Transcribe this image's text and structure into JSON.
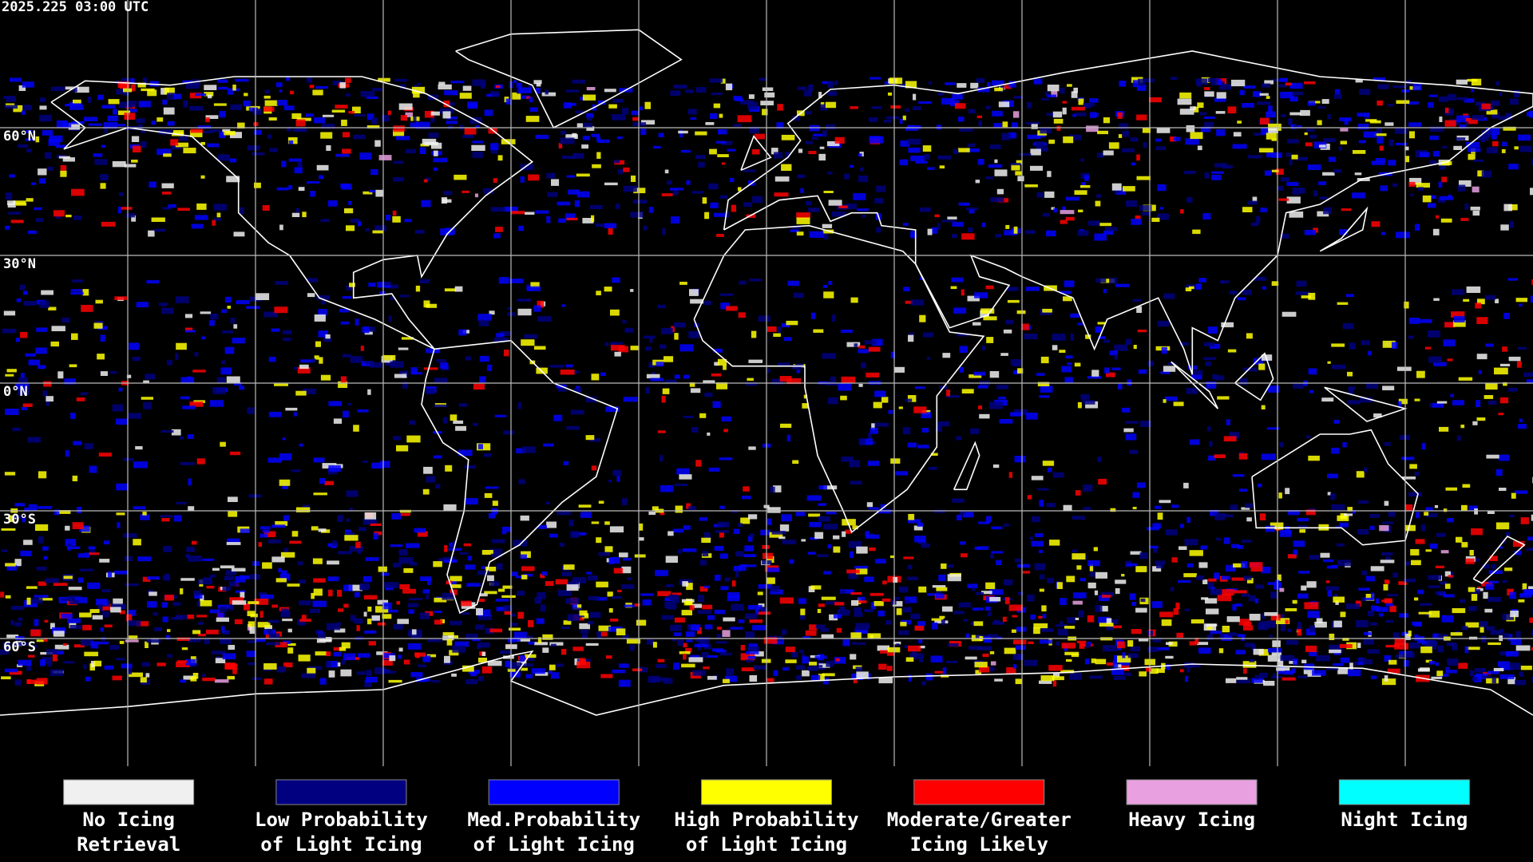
{
  "header": {
    "timestamp": "2025.225 03:00 UTC"
  },
  "map": {
    "latitude_labels": [
      "60°N",
      "30°N",
      "0°N",
      "30°S",
      "60°S"
    ]
  },
  "legend": {
    "items": [
      {
        "label": [
          "No Icing",
          "Retrieval"
        ],
        "color": "#f0f0f0"
      },
      {
        "label": [
          "Low Probability",
          "of Light Icing"
        ],
        "color": "#000080"
      },
      {
        "label": [
          "Med.Probability",
          "of Light Icing"
        ],
        "color": "#0000ff"
      },
      {
        "label": [
          "High Probability",
          "of Light Icing"
        ],
        "color": "#ffff00"
      },
      {
        "label": [
          "Moderate/Greater",
          "Icing Likely"
        ],
        "color": "#ff0000"
      },
      {
        "label": [
          "Heavy Icing"
        ],
        "color": "#e8a0e0"
      },
      {
        "label": [
          "Night Icing"
        ],
        "color": "#00ffff"
      }
    ]
  }
}
